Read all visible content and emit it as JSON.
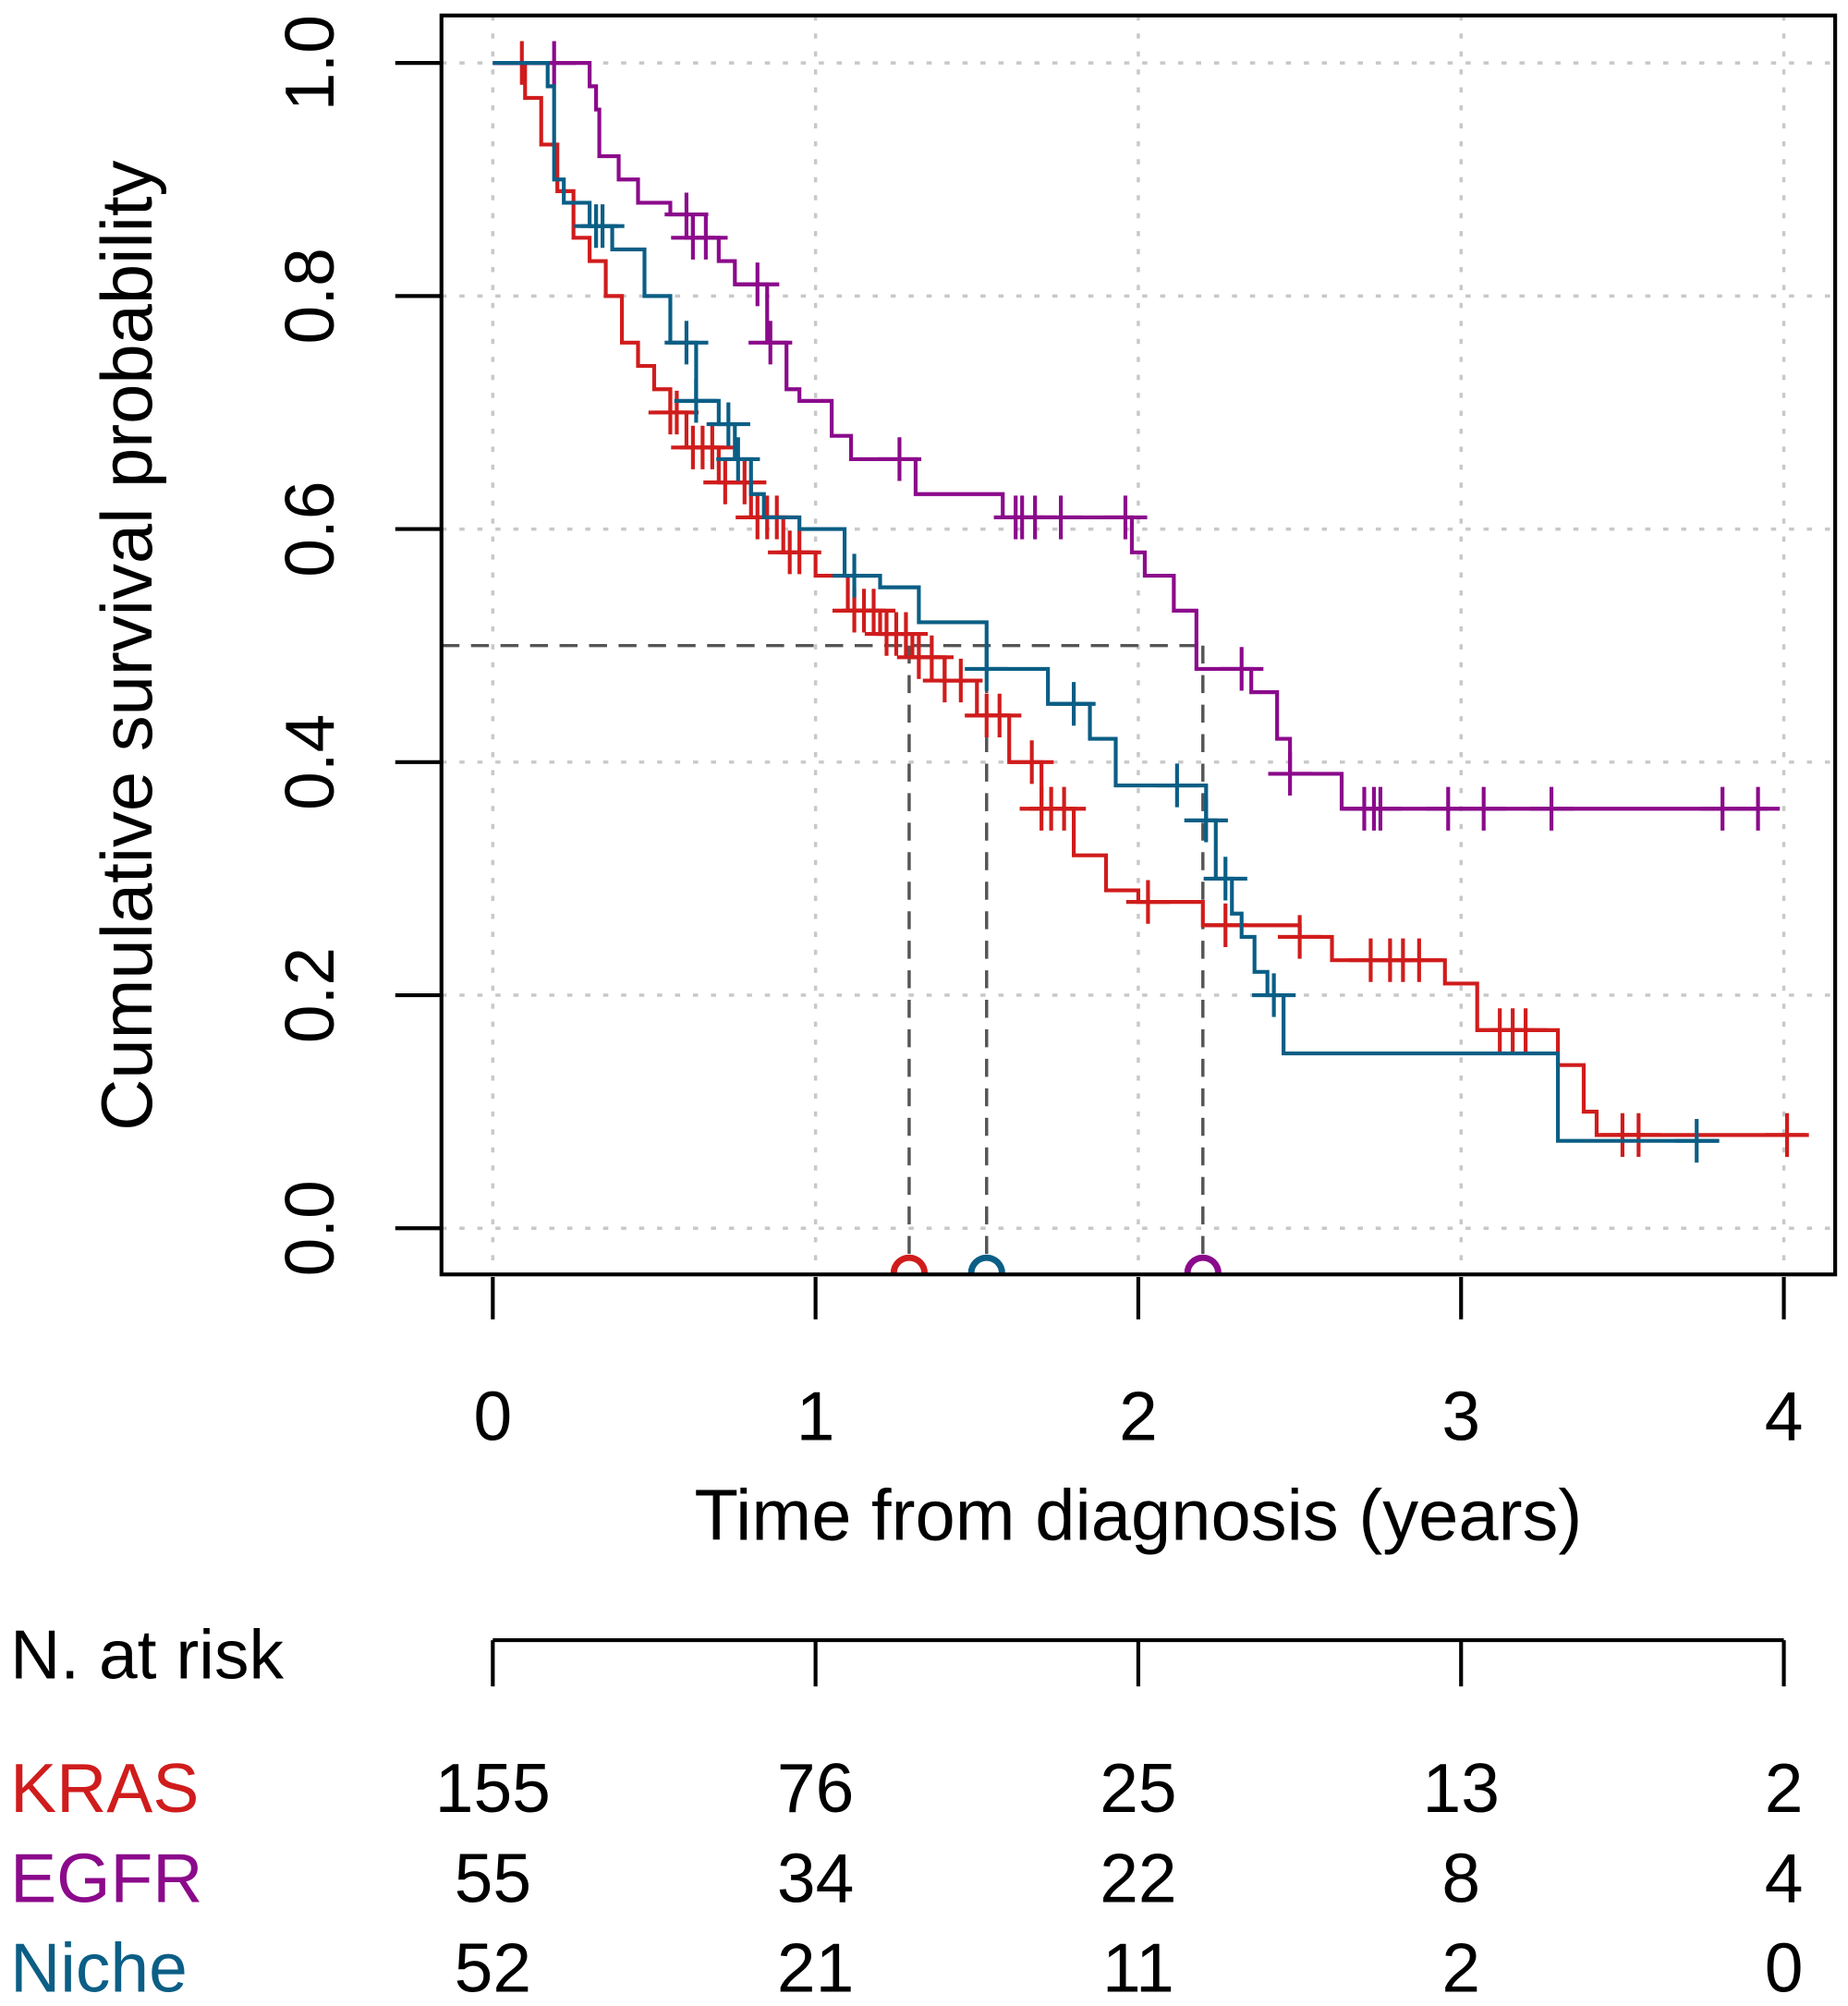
{
  "chart_data": {
    "type": "line",
    "subtype": "kaplan-meier",
    "xlabel": "Time from diagnosis (years)",
    "ylabel": "Cumulative survival probability",
    "xlim": [
      0,
      4
    ],
    "ylim": [
      0,
      1
    ],
    "xticks": [
      "0",
      "1",
      "2",
      "3",
      "4"
    ],
    "yticks": [
      "0.0",
      "0.2",
      "0.4",
      "0.6",
      "0.8",
      "1.0"
    ],
    "grid": true,
    "median_reference_level": 0.5,
    "series": [
      {
        "name": "KRAS",
        "color": "#d01c1c",
        "median": 1.29,
        "steps": [
          [
            0,
            1
          ],
          [
            0.07,
            1
          ],
          [
            0.1,
            0.97
          ],
          [
            0.15,
            0.93
          ],
          [
            0.2,
            0.89
          ],
          [
            0.25,
            0.85
          ],
          [
            0.3,
            0.83
          ],
          [
            0.35,
            0.8
          ],
          [
            0.4,
            0.76
          ],
          [
            0.45,
            0.74
          ],
          [
            0.5,
            0.72
          ],
          [
            0.55,
            0.7
          ],
          [
            0.6,
            0.67
          ],
          [
            0.7,
            0.64
          ],
          [
            0.8,
            0.61
          ],
          [
            0.9,
            0.58
          ],
          [
            1.0,
            0.56
          ],
          [
            1.1,
            0.53
          ],
          [
            1.2,
            0.51
          ],
          [
            1.3,
            0.49
          ],
          [
            1.4,
            0.47
          ],
          [
            1.5,
            0.44
          ],
          [
            1.6,
            0.4
          ],
          [
            1.7,
            0.36
          ],
          [
            1.8,
            0.32
          ],
          [
            1.9,
            0.29
          ],
          [
            2.0,
            0.28
          ],
          [
            2.2,
            0.26
          ],
          [
            2.5,
            0.25
          ],
          [
            2.6,
            0.23
          ],
          [
            2.95,
            0.21
          ],
          [
            3.05,
            0.17
          ],
          [
            3.3,
            0.14
          ],
          [
            3.38,
            0.1
          ],
          [
            3.42,
            0.08
          ],
          [
            4.07,
            0.08
          ]
        ],
        "censored": [
          0.09,
          0.55,
          0.57,
          0.62,
          0.65,
          0.68,
          0.72,
          0.78,
          0.82,
          0.85,
          0.88,
          0.92,
          0.95,
          1.12,
          1.15,
          1.18,
          1.22,
          1.25,
          1.28,
          1.32,
          1.36,
          1.4,
          1.45,
          1.53,
          1.57,
          1.67,
          1.7,
          1.73,
          1.77,
          2.03,
          2.27,
          2.5,
          2.72,
          2.78,
          2.82,
          2.87,
          3.12,
          3.16,
          3.2,
          3.5,
          3.55,
          4.01
        ],
        "at_risk": [
          "155",
          "76",
          "25",
          "13",
          "2"
        ]
      },
      {
        "name": "EGFR",
        "color": "#8b0a8b",
        "median": 2.2,
        "steps": [
          [
            0,
            1
          ],
          [
            0.3,
            0.98
          ],
          [
            0.32,
            0.96
          ],
          [
            0.33,
            0.92
          ],
          [
            0.39,
            0.9
          ],
          [
            0.45,
            0.88
          ],
          [
            0.55,
            0.87
          ],
          [
            0.62,
            0.85
          ],
          [
            0.7,
            0.83
          ],
          [
            0.75,
            0.81
          ],
          [
            0.85,
            0.76
          ],
          [
            0.91,
            0.72
          ],
          [
            0.95,
            0.71
          ],
          [
            1.05,
            0.68
          ],
          [
            1.11,
            0.66
          ],
          [
            1.31,
            0.63
          ],
          [
            1.58,
            0.61
          ],
          [
            1.98,
            0.58
          ],
          [
            2.02,
            0.56
          ],
          [
            2.11,
            0.53
          ],
          [
            2.18,
            0.48
          ],
          [
            2.35,
            0.46
          ],
          [
            2.43,
            0.42
          ],
          [
            2.47,
            0.39
          ],
          [
            2.63,
            0.36
          ],
          [
            3.95,
            0.36
          ]
        ],
        "censored": [
          0.19,
          0.6,
          0.62,
          0.66,
          0.82,
          0.86,
          1.26,
          1.62,
          1.64,
          1.68,
          1.76,
          1.96,
          2.32,
          2.47,
          2.7,
          2.73,
          2.75,
          2.96,
          3.07,
          3.28,
          3.81,
          3.92
        ],
        "at_risk": [
          "55",
          "34",
          "22",
          "8",
          "4"
        ]
      },
      {
        "name": "Niche",
        "color": "#0b5e85",
        "median": 1.53,
        "steps": [
          [
            0,
            1
          ],
          [
            0.17,
            0.98
          ],
          [
            0.19,
            0.9
          ],
          [
            0.22,
            0.88
          ],
          [
            0.3,
            0.86
          ],
          [
            0.37,
            0.84
          ],
          [
            0.47,
            0.8
          ],
          [
            0.55,
            0.76
          ],
          [
            0.63,
            0.71
          ],
          [
            0.7,
            0.69
          ],
          [
            0.75,
            0.66
          ],
          [
            0.8,
            0.63
          ],
          [
            0.84,
            0.61
          ],
          [
            0.95,
            0.6
          ],
          [
            1.09,
            0.56
          ],
          [
            1.2,
            0.55
          ],
          [
            1.32,
            0.52
          ],
          [
            1.53,
            0.48
          ],
          [
            1.72,
            0.45
          ],
          [
            1.85,
            0.42
          ],
          [
            1.93,
            0.38
          ],
          [
            2.21,
            0.35
          ],
          [
            2.24,
            0.3
          ],
          [
            2.29,
            0.27
          ],
          [
            2.32,
            0.25
          ],
          [
            2.36,
            0.22
          ],
          [
            2.4,
            0.2
          ],
          [
            2.45,
            0.15
          ],
          [
            3.3,
            0.075
          ],
          [
            3.8,
            0.075
          ]
        ],
        "censored": [
          0.32,
          0.34,
          0.6,
          0.63,
          0.73,
          0.76,
          1.12,
          1.53,
          1.8,
          2.12,
          2.21,
          2.27,
          2.42,
          3.73
        ],
        "at_risk": [
          "52",
          "21",
          "11",
          "2",
          "0"
        ]
      }
    ],
    "risk_table": {
      "title": "N. at risk"
    }
  }
}
